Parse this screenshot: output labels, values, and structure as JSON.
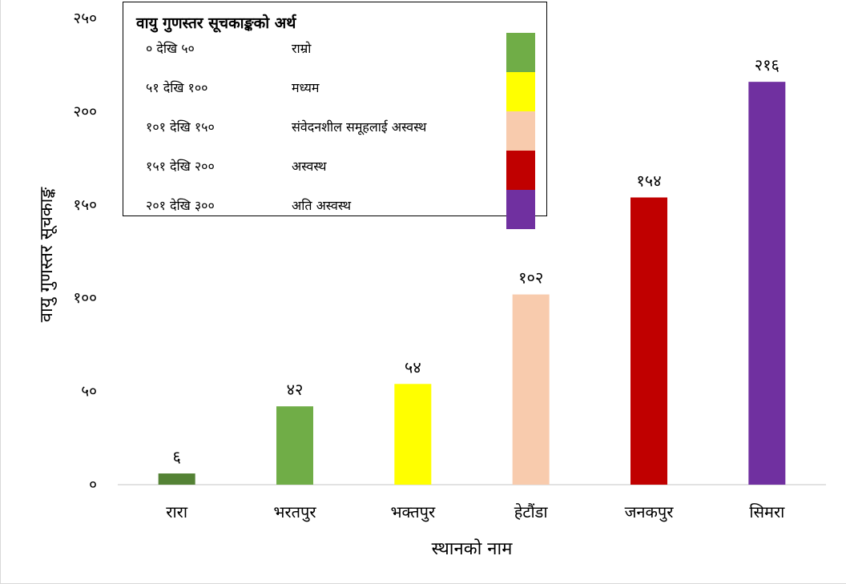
{
  "chart_data": {
    "type": "bar",
    "title": "",
    "xlabel": "स्थानको नाम",
    "ylabel": "वायु गुणस्तर सूचकाङ्क",
    "ylim": [
      0,
      250
    ],
    "yticks": [
      "०",
      "५०",
      "१००",
      "१५०",
      "२००",
      "२५०"
    ],
    "ytick_values": [
      0,
      50,
      100,
      150,
      200,
      250
    ],
    "categories": [
      "रारा",
      "भरतपुर",
      "भक्तपुर",
      "हेटौंडा",
      "जनकपुर",
      "सिमरा"
    ],
    "values": [
      6,
      42,
      54,
      102,
      154,
      216
    ],
    "value_labels": [
      "६",
      "४२",
      "५४",
      "१०२",
      "१५४",
      "२१६"
    ],
    "colors": [
      "#548235",
      "#70ad47",
      "#ffff00",
      "#f8cbad",
      "#c00000",
      "#7030a0"
    ],
    "gridlines": false,
    "legend": {
      "position": "top-left",
      "title": "वायु गुणस्तर सूचकाङ्कको अर्थ",
      "entries": [
        {
          "range": "० देखि ५०",
          "label": "राम्रो",
          "color": "#70ad47"
        },
        {
          "range": "५१ देखि १००",
          "label": "मध्यम",
          "color": "#ffff00"
        },
        {
          "range": "१०१ देखि १५०",
          "label": "संवेदनशील समूहलाई अस्वस्थ",
          "color": "#f8cbad"
        },
        {
          "range": "१५१ देखि २००",
          "label": "अस्वस्थ",
          "color": "#c00000"
        },
        {
          "range": "२०१ देखि ३००",
          "label": "अति अस्वस्थ",
          "color": "#7030a0"
        }
      ]
    }
  }
}
